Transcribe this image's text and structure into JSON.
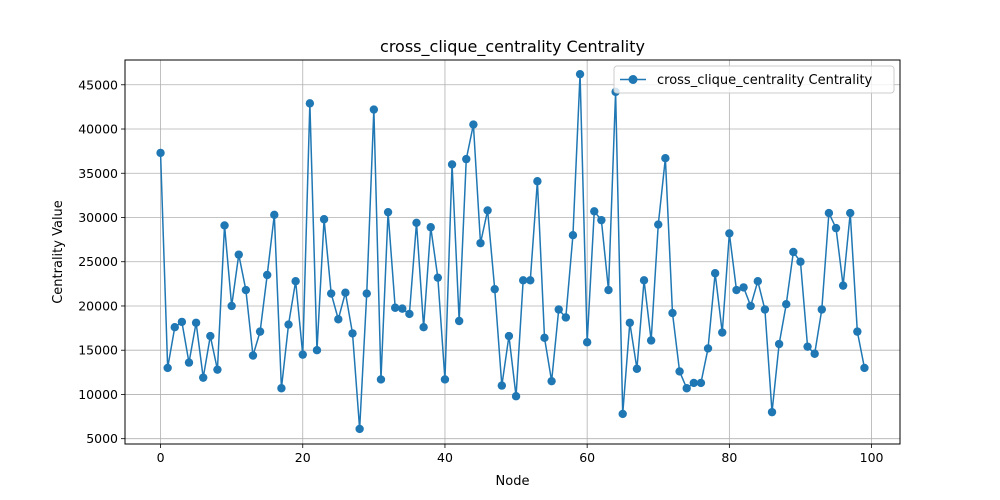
{
  "chart_data": {
    "type": "line",
    "title": "cross_clique_centrality Centrality",
    "xlabel": "Node",
    "ylabel": "Centrality Value",
    "xlim": [
      -5,
      104
    ],
    "ylim": [
      4400,
      47800
    ],
    "xticks": [
      0,
      20,
      40,
      60,
      80,
      100
    ],
    "yticks": [
      5000,
      10000,
      15000,
      20000,
      25000,
      30000,
      35000,
      40000,
      45000
    ],
    "grid": true,
    "legend_position": "top-right",
    "color": "#1f77b4",
    "series": [
      {
        "name": "cross_clique_centrality Centrality",
        "x": [
          0,
          1,
          2,
          3,
          4,
          5,
          6,
          7,
          8,
          9,
          10,
          11,
          12,
          13,
          14,
          15,
          16,
          17,
          18,
          19,
          20,
          21,
          22,
          23,
          24,
          25,
          26,
          27,
          28,
          29,
          30,
          31,
          32,
          33,
          34,
          35,
          36,
          37,
          38,
          39,
          40,
          41,
          42,
          43,
          44,
          45,
          46,
          47,
          48,
          49,
          50,
          51,
          52,
          53,
          54,
          55,
          56,
          57,
          58,
          59,
          60,
          61,
          62,
          63,
          64,
          65,
          66,
          67,
          68,
          69,
          70,
          71,
          72,
          73,
          74,
          75,
          76,
          77,
          78,
          79,
          80,
          81,
          82,
          83,
          84,
          85,
          86,
          87,
          88,
          89,
          90,
          91,
          92,
          93,
          94,
          95,
          96,
          97,
          98,
          99
        ],
        "values": [
          37300,
          13000,
          17600,
          18200,
          13600,
          18100,
          11900,
          16600,
          12800,
          29100,
          20000,
          25800,
          21800,
          14400,
          17100,
          23500,
          30300,
          10700,
          17900,
          22800,
          14500,
          42900,
          15000,
          29800,
          21400,
          18500,
          21500,
          16900,
          6100,
          21400,
          42200,
          11700,
          30600,
          19800,
          19700,
          19100,
          29400,
          17600,
          28900,
          23200,
          11700,
          36000,
          18300,
          36600,
          40500,
          27100,
          30800,
          21900,
          11000,
          16600,
          9800,
          22900,
          22900,
          34100,
          16400,
          11500,
          19600,
          18700,
          28000,
          46200,
          15900,
          30700,
          29700,
          21800,
          44200,
          7800,
          18100,
          12900,
          22900,
          16100,
          29200,
          36700,
          19200,
          12600,
          10700,
          11300,
          11300,
          15200,
          23700,
          17000,
          28200,
          21800,
          22100,
          20000,
          22800,
          19600,
          8000,
          15700,
          20200,
          26100,
          25000,
          15400,
          14600,
          19600,
          30500,
          28800,
          22300,
          30500,
          17100,
          13000
        ]
      }
    ]
  }
}
